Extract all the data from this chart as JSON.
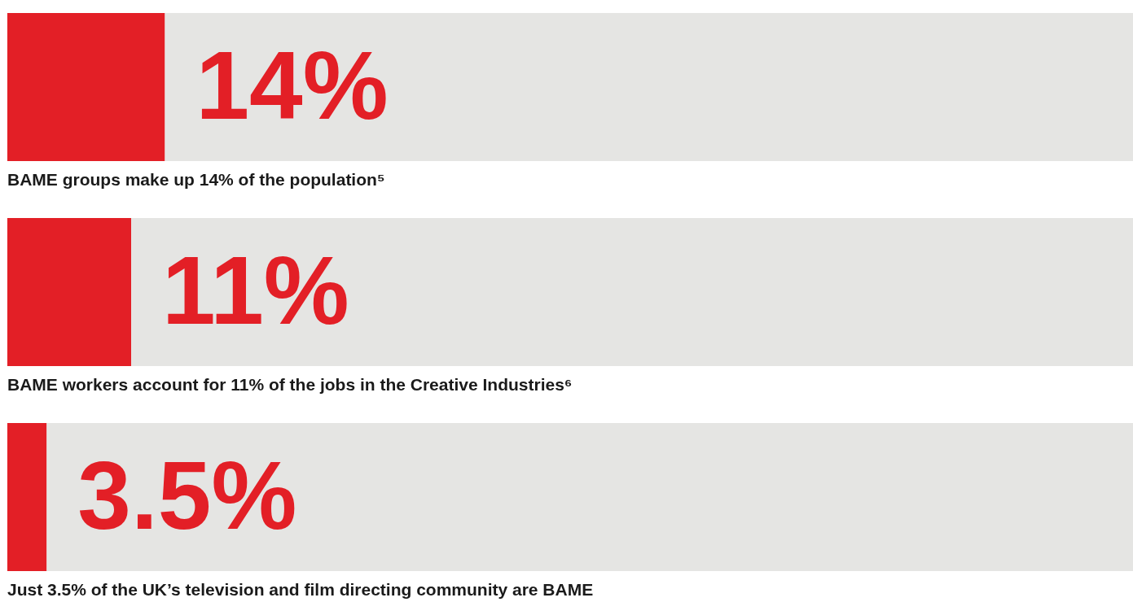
{
  "chart_data": {
    "type": "bar",
    "orientation": "horizontal",
    "stacked": true,
    "categories": [
      "BAME groups make up 14% of the population⁵",
      "BAME workers account for 11% of the jobs in the Creative Industries⁶",
      "Just 3.5% of the UK’s television and film directing community are BAME"
    ],
    "series": [
      {
        "color": "#e31f26",
        "values": [
          14,
          11,
          3.5
        ],
        "value_labels": [
          "14%",
          "11%",
          "3.5%"
        ]
      },
      {
        "color": "#e5e5e3",
        "values": [
          86,
          89,
          96.5
        ]
      }
    ],
    "xlim": [
      0,
      100
    ]
  }
}
